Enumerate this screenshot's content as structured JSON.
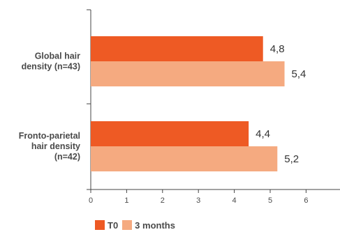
{
  "chart_data": {
    "type": "bar",
    "orientation": "horizontal",
    "categories": [
      [
        "Global hair",
        "density (n=43)"
      ],
      [
        "Fronto-parietal",
        "hair density",
        "(n=42)"
      ]
    ],
    "series": [
      {
        "name": "T0",
        "color": "#ee5a24",
        "values": [
          4.8,
          4.4
        ],
        "labels": [
          "4,8",
          "4,4"
        ]
      },
      {
        "name": "3 months",
        "color": "#f5aa80",
        "values": [
          5.4,
          5.2
        ],
        "labels": [
          "5,4",
          "5,2"
        ]
      }
    ],
    "xticks": [
      "0",
      "1",
      "2",
      "3",
      "4",
      "5",
      "6"
    ],
    "xlim": [
      0,
      7
    ],
    "grid": false,
    "legend_position": "bottom-left"
  }
}
